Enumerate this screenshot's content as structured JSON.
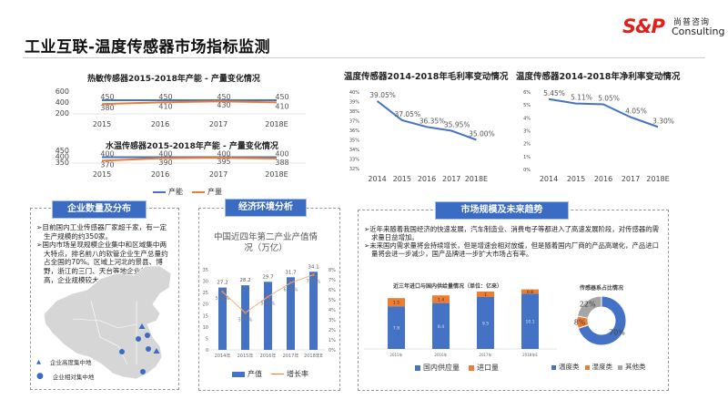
{
  "header": {
    "title": "工业互联-温度传感器市场指标监测",
    "logo_mark": "S&P",
    "logo_cn": "尚普咨询",
    "logo_en": "Consulting"
  },
  "colors": {
    "blue": "#4472c4",
    "orange": "#ed7d31",
    "gray": "#a5a5a5",
    "header_blue": "#3b6cc4"
  },
  "capacity_legend": {
    "capacity": "产能",
    "output": "产量"
  },
  "panels": {
    "enterprise": {
      "header": "企业数量及分布",
      "bullets": [
        "目前国内工业传感器厂家超千家，有一定生产规模的约350家。",
        "国内市场呈现规模企业集中和区域集中两大特点，排名前八的软管企业生产总量约占全国的70%。区域上河北的景县、博野，浙江的三门、天台等地企业集中度高，企业规模较大。"
      ],
      "legend_triangle": "企业高度集中地",
      "legend_circle": "企业相对集中地"
    },
    "economy": {
      "header": "经济环境分析"
    },
    "market": {
      "header": "市场规模及未来趋势",
      "bullets": [
        "近年来随着我国经济的快速发展，汽车制造业、消费电子等都进入了高速发展阶段，对传感器的需求量日益增加。",
        "未来国内需求量将会持续增长，但是增速会相对放缓，但是随着国内厂商的产品高端化，产品进口量将会进一步减少，国产品牌进一步扩大市场占有率。"
      ]
    }
  },
  "chart_data": [
    {
      "id": "heat",
      "type": "line",
      "title": "热敏传感器2015-2018年产能 - 产量变化情况",
      "categories": [
        "2015",
        "2016",
        "2017",
        "2018E"
      ],
      "series": [
        {
          "name": "产能",
          "values": [
            450,
            450,
            450,
            450
          ]
        },
        {
          "name": "产量",
          "values": [
            380,
            410,
            430,
            410
          ]
        }
      ],
      "ylim": [
        200,
        600
      ],
      "yticks": [
        "200",
        "400",
        "600"
      ]
    },
    {
      "id": "water",
      "type": "line",
      "title": "水温传感器2015-2018年产能 - 产量变化情况",
      "categories": [
        "2015",
        "2016",
        "2017",
        "2018E"
      ],
      "series": [
        {
          "name": "产能",
          "values": [
            400,
            400,
            400,
            400
          ]
        },
        {
          "name": "产量",
          "values": [
            370,
            390,
            395,
            388
          ]
        }
      ],
      "ylim": [
        350,
        450
      ],
      "yticks": [
        "350",
        "400",
        "450"
      ]
    },
    {
      "id": "gross",
      "type": "line",
      "title": "温度传感器2014-2018年毛利率变动情况",
      "categories": [
        "2014",
        "2015",
        "2016",
        "2017",
        "2018E"
      ],
      "series": [
        {
          "name": "毛利率",
          "values": [
            39.05,
            37.05,
            36.35,
            35.95,
            35.0
          ]
        }
      ],
      "ylim": [
        32,
        40
      ],
      "yticks": [
        "32%",
        "33%",
        "34%",
        "35%",
        "36%",
        "37%",
        "38%",
        "39%",
        "40%"
      ],
      "labels": [
        "39.05%",
        "37.05%",
        "36.35%",
        "35.95%",
        "35.00%"
      ]
    },
    {
      "id": "net",
      "type": "line",
      "title": "温度传感器2014-2018年净利率变动情况",
      "categories": [
        "2014",
        "2015",
        "2016",
        "2017",
        "2018E"
      ],
      "series": [
        {
          "name": "净利率",
          "values": [
            5.45,
            5.11,
            5.05,
            4.05,
            3.3
          ]
        }
      ],
      "ylim": [
        0,
        6
      ],
      "yticks": [
        "0%",
        "1%",
        "2%",
        "3%",
        "4%",
        "5%",
        "6%"
      ],
      "labels": [
        "5.45%",
        "5.11%",
        "5.05%",
        "4.05%",
        "3.30%"
      ]
    },
    {
      "id": "industry",
      "type": "bar",
      "title": "中国近四年第二产业产值情况（万亿）",
      "categories": [
        "2014年",
        "2015年",
        "2016年",
        "2017年",
        "2018年E"
      ],
      "series": [
        {
          "name": "产值",
          "values": [
            27.2,
            28.2,
            29.7,
            31.7,
            34.1
          ]
        },
        {
          "name": "增长率",
          "values": [
            5.8,
            3.7,
            5.3,
            6.7,
            7.5
          ],
          "labels": [
            "5.80%",
            "3.70%",
            "5.30%",
            "6.70%",
            "7.50%"
          ]
        }
      ],
      "ylim": [
        0,
        35
      ],
      "yticks": [
        "0",
        "5",
        "10",
        "15",
        "20",
        "25",
        "30",
        "35"
      ],
      "y2lim": [
        0,
        8
      ],
      "y2ticks": [
        "0%",
        "1%",
        "2%",
        "3%",
        "4%",
        "5%",
        "6%",
        "7%",
        "8%"
      ]
    },
    {
      "id": "supply",
      "type": "bar",
      "title": "近三年进口与国内供给量情况（单位：亿来）",
      "categories": [
        "2015年",
        "2016年",
        "2017年",
        "2018年E"
      ],
      "series": [
        {
          "name": "国内供应量",
          "values": [
            7.8,
            8.4,
            9.5,
            10.1
          ]
        },
        {
          "name": "进口量",
          "values": [
            1.5,
            1.4,
            1,
            0.8
          ]
        }
      ],
      "stacked": true
    },
    {
      "id": "share",
      "type": "pie",
      "title": "传感器系占比情况",
      "categories": [
        "温度类",
        "湿度类",
        "其他类"
      ],
      "values": [
        70,
        8,
        22
      ],
      "labels": [
        "70%",
        "8%",
        "22%"
      ]
    }
  ]
}
